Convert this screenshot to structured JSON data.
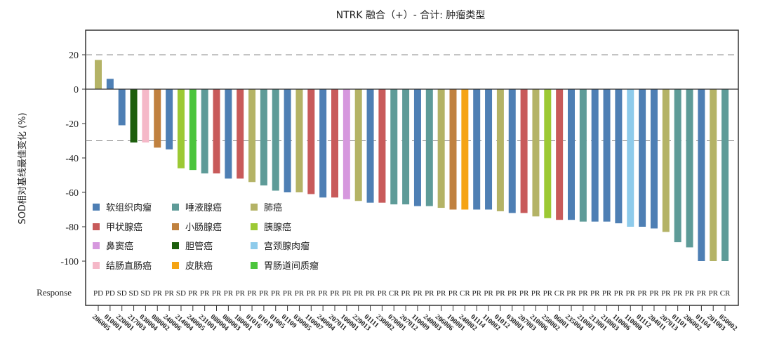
{
  "chart_data": {
    "type": "bar",
    "title": "NTRK 融合（+）- 合计: 肿瘤类型",
    "ylabel": "SOD相对基线最佳变化 (%)",
    "xlabel": "",
    "ylim": [
      -110,
      35
    ],
    "yticks": [
      20,
      0,
      -20,
      -40,
      -60,
      -80,
      -100
    ],
    "reference_lines": [
      20,
      -30
    ],
    "response_label": "Response",
    "legend_position": "bottom-left",
    "legend": [
      {
        "name": "软组织肉瘤",
        "color": "#4e7fb4"
      },
      {
        "name": "唾液腺癌",
        "color": "#5e9b98"
      },
      {
        "name": "肺癌",
        "color": "#b4b366"
      },
      {
        "name": "甲状腺癌",
        "color": "#c85a5a"
      },
      {
        "name": "小肠腺癌",
        "color": "#c0813f"
      },
      {
        "name": "胰腺癌",
        "color": "#9cc934"
      },
      {
        "name": "鼻窦癌",
        "color": "#d698de"
      },
      {
        "name": "胆管癌",
        "color": "#1c5e0c"
      },
      {
        "name": "宫颈腺肉瘤",
        "color": "#8ecbeb"
      },
      {
        "name": "结肠直肠癌",
        "color": "#f5b8c8"
      },
      {
        "name": "皮肤癌",
        "color": "#f5a414"
      },
      {
        "name": "胃肠道间质瘤",
        "color": "#4cc53c"
      }
    ],
    "bars": [
      {
        "id": "206005",
        "value": 17,
        "response": "PD",
        "type": 2
      },
      {
        "id": "010001",
        "value": 6,
        "response": "PD",
        "type": 0
      },
      {
        "id": "220001",
        "value": -21,
        "response": "SD",
        "type": 0
      },
      {
        "id": "217003",
        "value": -31,
        "response": "SD",
        "type": 7
      },
      {
        "id": "030004",
        "value": -31,
        "response": "SD",
        "type": 9
      },
      {
        "id": "080002",
        "value": -34,
        "response": "PR",
        "type": 4
      },
      {
        "id": "240006",
        "value": -35,
        "response": "PR",
        "type": 0
      },
      {
        "id": "214004",
        "value": -46,
        "response": "SD",
        "type": 5
      },
      {
        "id": "240005",
        "value": -47,
        "response": "PR",
        "type": 11
      },
      {
        "id": "231001",
        "value": -49,
        "response": "PR",
        "type": 1
      },
      {
        "id": "080004",
        "value": -49,
        "response": "PR",
        "type": 3
      },
      {
        "id": "080003",
        "value": -52,
        "response": "PR",
        "type": 0
      },
      {
        "id": "180001",
        "value": -52,
        "response": "PR",
        "type": 3
      },
      {
        "id": "01016",
        "value": -54,
        "response": "PR",
        "type": 2
      },
      {
        "id": "01019",
        "value": -56,
        "response": "PR",
        "type": 1
      },
      {
        "id": "01005",
        "value": -59,
        "response": "PR",
        "type": 1
      },
      {
        "id": "01109",
        "value": -60,
        "response": "PR",
        "type": 0
      },
      {
        "id": "030005",
        "value": -60,
        "response": "PR",
        "type": 2
      },
      {
        "id": "110007",
        "value": -61,
        "response": "PR",
        "type": 3
      },
      {
        "id": "240004",
        "value": -63,
        "response": "PR",
        "type": 0
      },
      {
        "id": "207011",
        "value": -63,
        "response": "PR",
        "type": 3
      },
      {
        "id": "100001",
        "value": -64,
        "response": "PR",
        "type": 6
      },
      {
        "id": "229013",
        "value": -65,
        "response": "PR",
        "type": 2
      },
      {
        "id": "01111",
        "value": -66,
        "response": "PR",
        "type": 0
      },
      {
        "id": "230002",
        "value": -66,
        "response": "PR",
        "type": 3
      },
      {
        "id": "070001",
        "value": -67,
        "response": "CR",
        "type": 1
      },
      {
        "id": "207012",
        "value": -67,
        "response": "PR",
        "type": 1
      },
      {
        "id": "110009",
        "value": -68,
        "response": "PR",
        "type": 0
      },
      {
        "id": "240003",
        "value": -68,
        "response": "PR",
        "type": 1
      },
      {
        "id": "206006",
        "value": -69,
        "response": "PR",
        "type": 2
      },
      {
        "id": "190001",
        "value": -70,
        "response": "PR",
        "type": 4
      },
      {
        "id": "240002",
        "value": -70,
        "response": "CR",
        "type": 10
      },
      {
        "id": "01114",
        "value": -70,
        "response": "PR",
        "type": 0
      },
      {
        "id": "110002",
        "value": -70,
        "response": "PR",
        "type": 0
      },
      {
        "id": "01012",
        "value": -71,
        "response": "PR",
        "type": 2
      },
      {
        "id": "030001",
        "value": -72,
        "response": "PR",
        "type": 0
      },
      {
        "id": "207003",
        "value": -72,
        "response": "PR",
        "type": 3
      },
      {
        "id": "210006",
        "value": -74,
        "response": "PR",
        "type": 2
      },
      {
        "id": "250002",
        "value": -75,
        "response": "PR",
        "type": 5
      },
      {
        "id": "06001",
        "value": -76,
        "response": "CR",
        "type": 3
      },
      {
        "id": "235004",
        "value": -76,
        "response": "PR",
        "type": 0
      },
      {
        "id": "210001",
        "value": -77,
        "response": "PR",
        "type": 1
      },
      {
        "id": "213001",
        "value": -77,
        "response": "PR",
        "type": 0
      },
      {
        "id": "218003",
        "value": -77,
        "response": "PR",
        "type": 0
      },
      {
        "id": "110006",
        "value": -78,
        "response": "PR",
        "type": 0
      },
      {
        "id": "110008",
        "value": -80,
        "response": "PR",
        "type": 8
      },
      {
        "id": "01112",
        "value": -80,
        "response": "PR",
        "type": 0
      },
      {
        "id": "204011",
        "value": -81,
        "response": "PR",
        "type": 0
      },
      {
        "id": "207013",
        "value": -83,
        "response": "PR",
        "type": 2
      },
      {
        "id": "01101",
        "value": -89,
        "response": "PR",
        "type": 1
      },
      {
        "id": "206002",
        "value": -92,
        "response": "PR",
        "type": 1
      },
      {
        "id": "01104",
        "value": -100,
        "response": "PR",
        "type": 0
      },
      {
        "id": "201003",
        "value": -100,
        "response": "PR",
        "type": 2
      },
      {
        "id": "050002",
        "value": -100,
        "response": "CR",
        "type": 1
      }
    ]
  }
}
